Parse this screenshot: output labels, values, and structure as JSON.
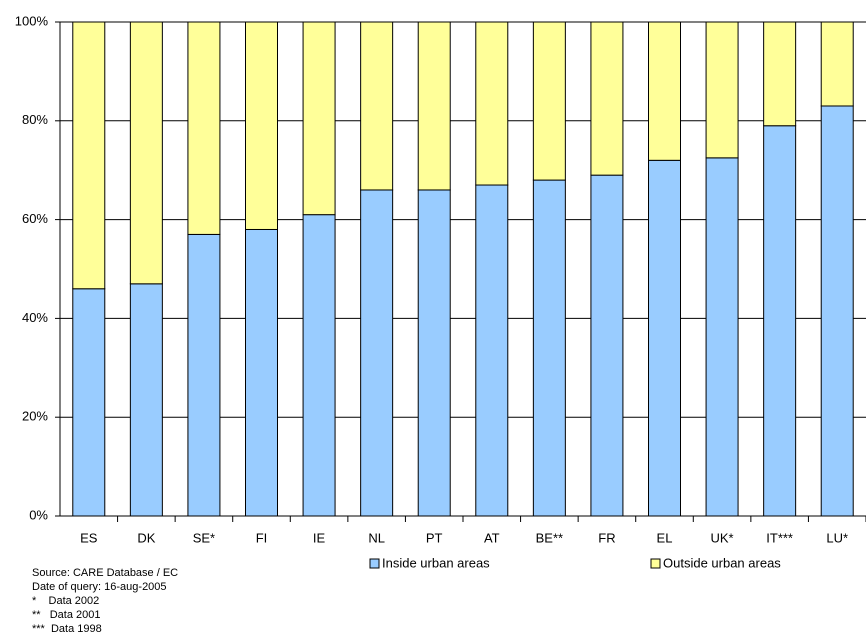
{
  "chart_data": {
    "type": "stacked_bar",
    "categories": [
      "ES",
      "DK",
      "SE*",
      "FI",
      "IE",
      "NL",
      "PT",
      "AT",
      "BE**",
      "FR",
      "EL",
      "UK*",
      "IT***",
      "LU*"
    ],
    "series": [
      {
        "name": "Inside urban areas",
        "color": "#99ccff",
        "values": [
          46,
          47,
          57,
          58,
          61,
          66,
          66,
          67,
          68,
          69,
          72,
          72.5,
          79,
          83
        ]
      },
      {
        "name": "Outside urban areas",
        "color": "#ffff99",
        "values": [
          54,
          53,
          43,
          42,
          39,
          34,
          34,
          33,
          32,
          31,
          28,
          27.5,
          21,
          17
        ]
      }
    ],
    "ylim": [
      0,
      100
    ],
    "yticks": [
      {
        "value": 0,
        "label": "0%"
      },
      {
        "value": 20,
        "label": "20%"
      },
      {
        "value": 40,
        "label": "40%"
      },
      {
        "value": 60,
        "label": "60%"
      },
      {
        "value": 80,
        "label": "80%"
      },
      {
        "value": 100,
        "label": "100%"
      }
    ],
    "grid": true,
    "legend": "bottom",
    "notes": [
      "Source: CARE Database / EC",
      "Date of query: 16-aug-2005",
      "*    Data 2002",
      "**   Data 2001",
      "***  Data 1998"
    ]
  }
}
